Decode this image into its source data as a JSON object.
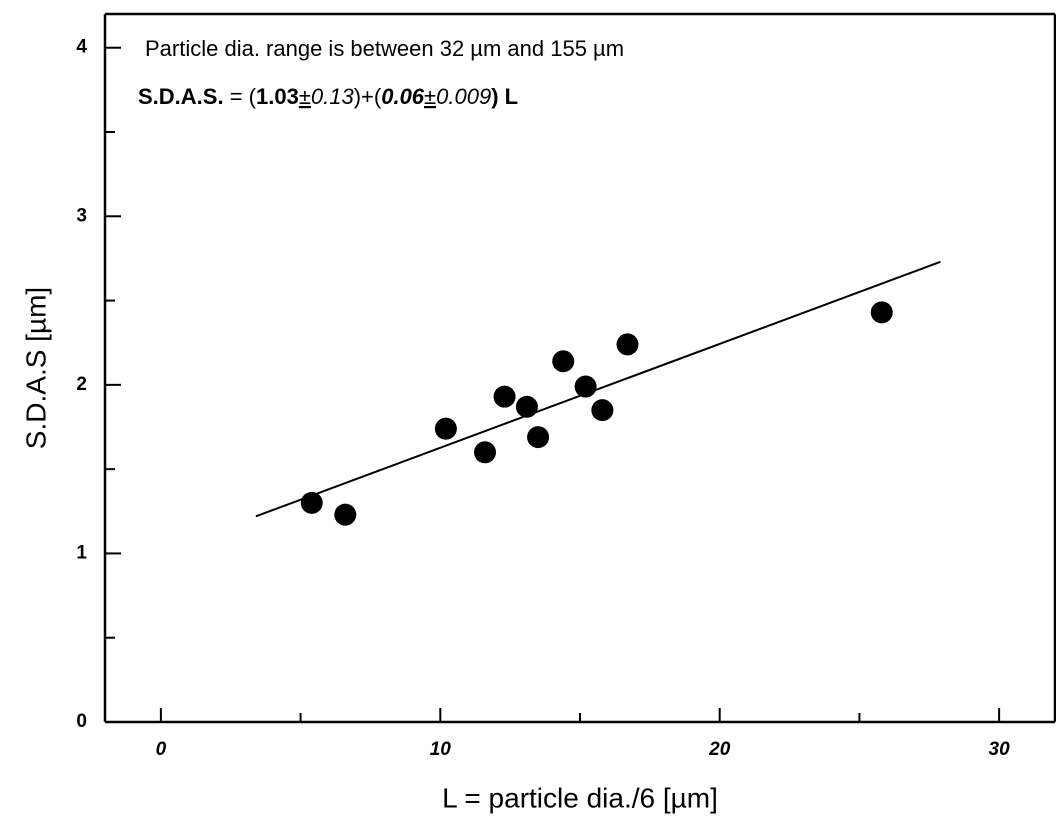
{
  "chart_data": {
    "type": "scatter",
    "annotation": "Particle dia. range is between 32 µm and 155 µm",
    "equation": [
      {
        "text": "S.D.A.S.",
        "style": "bold"
      },
      {
        "text": " = (",
        "style": "normal"
      },
      {
        "text": "1.03",
        "style": "bold"
      },
      {
        "text": "±",
        "style": "underline"
      },
      {
        "text": "0.13",
        "style": "italic"
      },
      {
        "text": ")+(",
        "style": "normal"
      },
      {
        "text": "0.06",
        "style": "bold-italic"
      },
      {
        "text": "±",
        "style": "underline"
      },
      {
        "text": "0.009",
        "style": "italic"
      },
      {
        "text": ") L",
        "style": "bold"
      }
    ],
    "x_label": "L = particle dia./6  [µm]",
    "y_label": "S.D.A.S  [µm]",
    "xlim": [
      -2,
      32
    ],
    "ylim": [
      0,
      4.2
    ],
    "xticks": [
      0,
      10,
      20,
      30
    ],
    "yticks": [
      0,
      1,
      2,
      3,
      4
    ],
    "xminor_ticks": [
      5,
      15,
      25
    ],
    "yminor_ticks": [
      0.5,
      1.5,
      2.5,
      3.5
    ],
    "series": [
      {
        "style": "markers",
        "color": "#000000",
        "x": [
          5.4,
          6.6,
          10.2,
          11.6,
          12.3,
          13.1,
          13.5,
          14.4,
          15.2,
          15.8,
          16.7,
          25.8
        ],
        "values": [
          1.3,
          1.23,
          1.74,
          1.6,
          1.93,
          1.87,
          1.69,
          2.14,
          1.99,
          1.85,
          2.24,
          2.43
        ]
      },
      {
        "style": "line",
        "color": "#000000",
        "x": [
          3.4,
          27.9
        ],
        "values": [
          1.22,
          2.73
        ]
      }
    ]
  }
}
